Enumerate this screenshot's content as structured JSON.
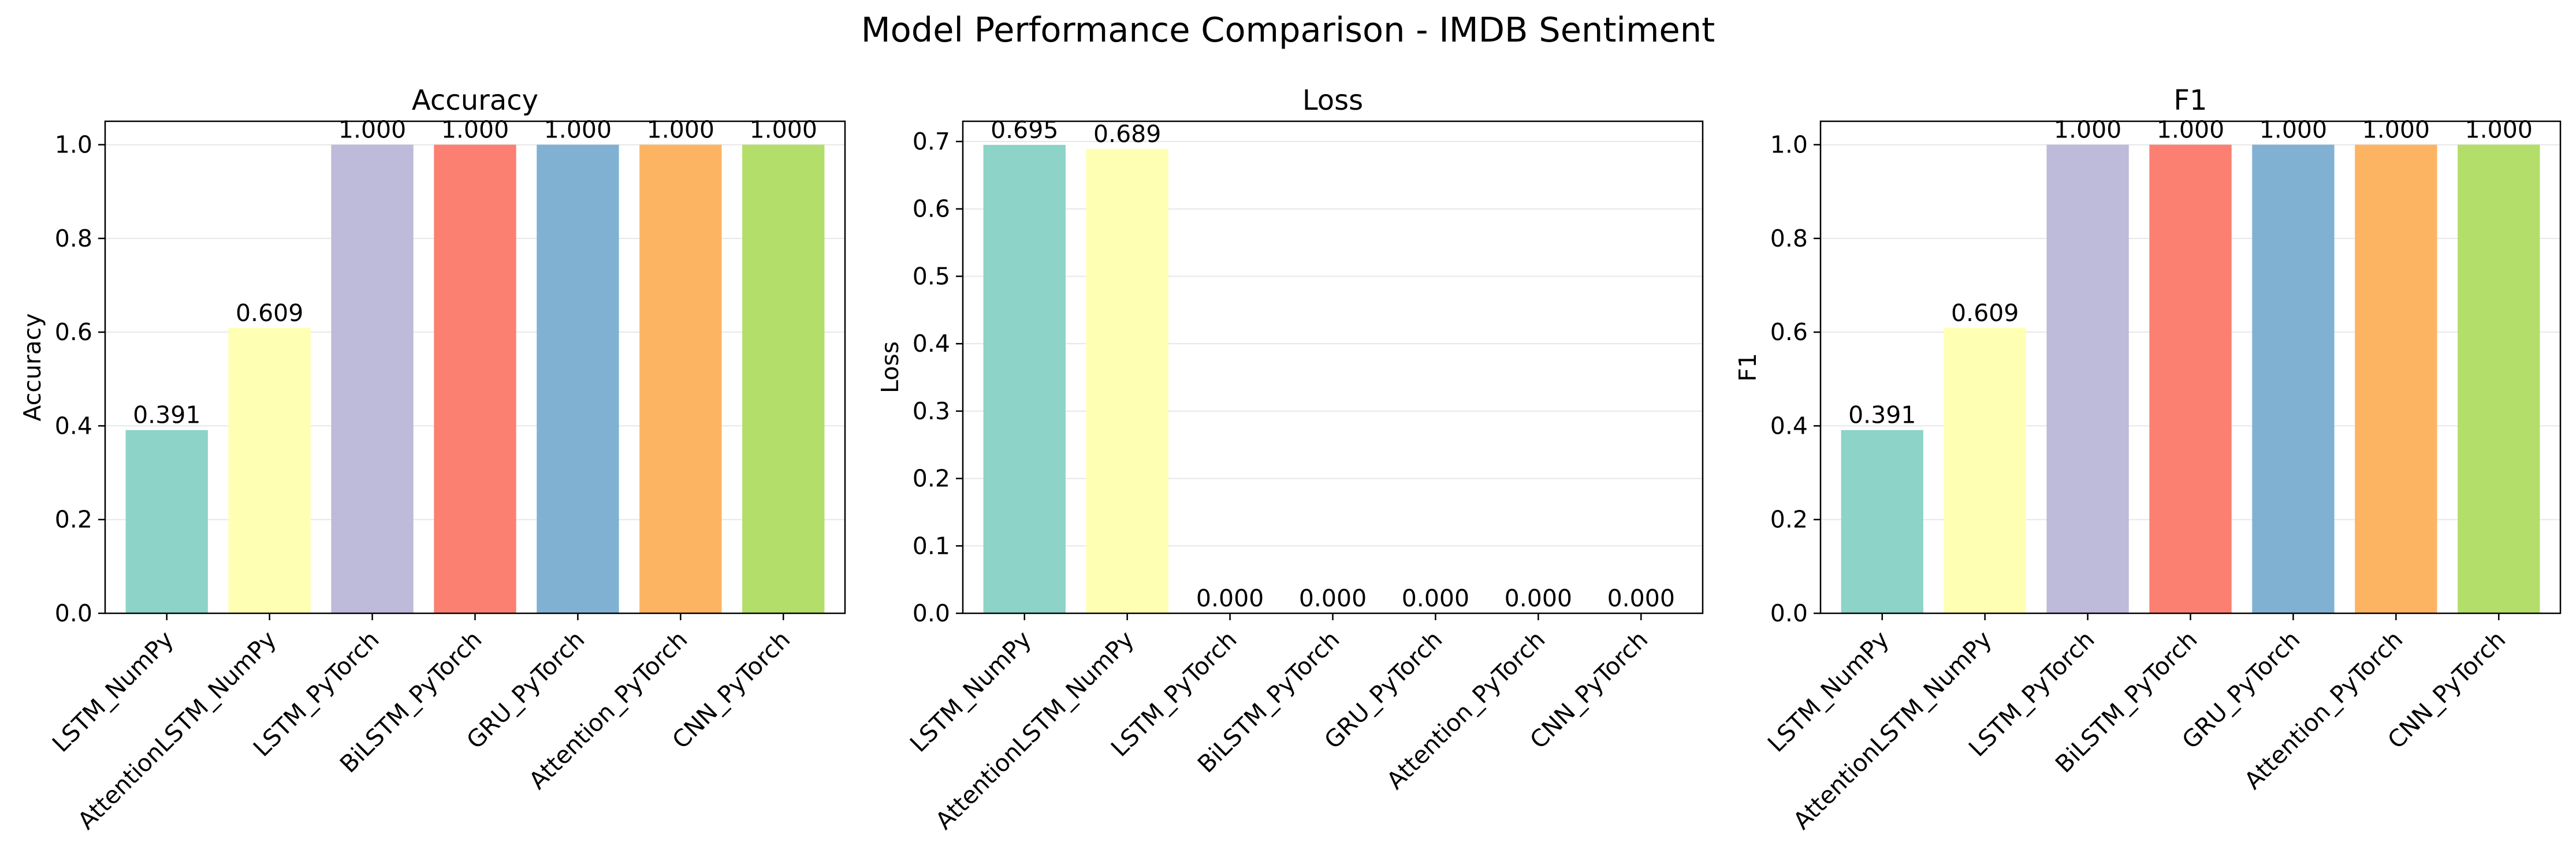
{
  "chart_data": {
    "title": "Model Performance Comparison - IMDB Sentiment",
    "type": "bar",
    "categories": [
      "LSTM_NumPy",
      "AttentionLSTM_NumPy",
      "LSTM_PyTorch",
      "BiLSTM_PyTorch",
      "GRU_PyTorch",
      "Attention_PyTorch",
      "CNN_PyTorch"
    ],
    "colors": [
      "#8dd3c7",
      "#ffffb3",
      "#bebada",
      "#fb8072",
      "#80b1d3",
      "#fdb462",
      "#b3de69"
    ],
    "grid": "y",
    "panels": [
      {
        "title": "Accuracy",
        "ylabel": "Accuracy",
        "ylim": [
          0,
          1.05
        ],
        "yticks": [
          0.0,
          0.2,
          0.4,
          0.6,
          0.8,
          1.0
        ],
        "ytick_labels": [
          "0.0",
          "0.2",
          "0.4",
          "0.6",
          "0.8",
          "1.0"
        ],
        "values": [
          0.391,
          0.609,
          1.0,
          1.0,
          1.0,
          1.0,
          1.0
        ],
        "value_labels": [
          "0.391",
          "0.609",
          "1.000",
          "1.000",
          "1.000",
          "1.000",
          "1.000"
        ]
      },
      {
        "title": "Loss",
        "ylabel": "Loss",
        "ylim": [
          0,
          0.73
        ],
        "yticks": [
          0.0,
          0.1,
          0.2,
          0.3,
          0.4,
          0.5,
          0.6,
          0.7
        ],
        "ytick_labels": [
          "0.0",
          "0.1",
          "0.2",
          "0.3",
          "0.4",
          "0.5",
          "0.6",
          "0.7"
        ],
        "values": [
          0.695,
          0.689,
          0.0,
          0.0,
          0.0,
          0.0,
          0.0
        ],
        "value_labels": [
          "0.695",
          "0.689",
          "0.000",
          "0.000",
          "0.000",
          "0.000",
          "0.000"
        ]
      },
      {
        "title": "F1",
        "ylabel": "F1",
        "ylim": [
          0,
          1.05
        ],
        "yticks": [
          0.0,
          0.2,
          0.4,
          0.6,
          0.8,
          1.0
        ],
        "ytick_labels": [
          "0.0",
          "0.2",
          "0.4",
          "0.6",
          "0.8",
          "1.0"
        ],
        "values": [
          0.391,
          0.609,
          1.0,
          1.0,
          1.0,
          1.0,
          1.0
        ],
        "value_labels": [
          "0.391",
          "0.609",
          "1.000",
          "1.000",
          "1.000",
          "1.000",
          "1.000"
        ]
      }
    ]
  }
}
